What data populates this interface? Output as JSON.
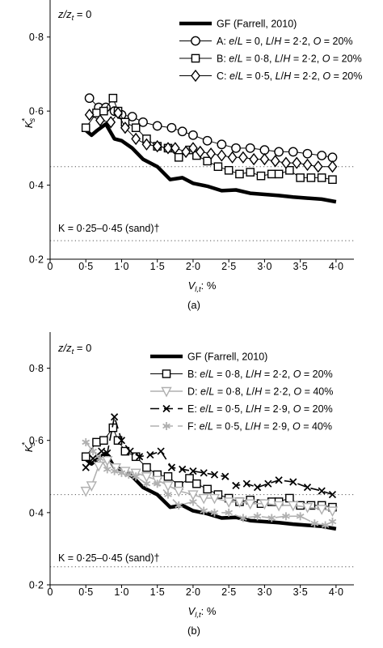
{
  "chart_data": [
    {
      "type": "line",
      "panel_label": "(a)",
      "xlabel_main": "V",
      "xlabel_sub": "l,t",
      "xlabel_unit": ": %",
      "ylabel_main": "K",
      "ylabel_sup": "*",
      "ylabel_sub": "s",
      "xlim": [
        0,
        4.25
      ],
      "ylim": [
        0.2,
        0.9
      ],
      "xticks": [
        {
          "v": 0,
          "label": "0"
        },
        {
          "v": 0.5,
          "label": "0·5"
        },
        {
          "v": 1.0,
          "label": "1·0"
        },
        {
          "v": 1.5,
          "label": "1·5"
        },
        {
          "v": 2.0,
          "label": "2·0"
        },
        {
          "v": 2.5,
          "label": "2·5"
        },
        {
          "v": 3.0,
          "label": "3·0"
        },
        {
          "v": 3.5,
          "label": "3·5"
        },
        {
          "v": 4.0,
          "label": "4·0"
        }
      ],
      "yticks": [
        {
          "v": 0.2,
          "label": "0·2"
        },
        {
          "v": 0.4,
          "label": "0·4"
        },
        {
          "v": 0.6,
          "label": "0·6"
        },
        {
          "v": 0.8,
          "label": "0·8"
        }
      ],
      "ratio_label": {
        "main": "z/z",
        "sub": "t",
        "rest": " = 0"
      },
      "reference_lines": [
        0.25,
        0.45
      ],
      "reference_text": "K = 0·25–0·45 (sand)†",
      "series": [
        {
          "name": "GF (Farrell, 2010)",
          "legend_parts": [
            [
              "GF (Farrell, 2010)",
              "n"
            ]
          ],
          "color": "#000000",
          "stroke_width": 4.5,
          "dash": "",
          "marker": "none",
          "x": [
            0.5,
            0.58,
            0.66,
            0.78,
            0.9,
            1.0,
            1.15,
            1.3,
            1.5,
            1.68,
            1.85,
            2.0,
            2.2,
            2.4,
            2.6,
            2.8,
            3.0,
            3.2,
            3.4,
            3.6,
            3.8,
            4.0
          ],
          "y": [
            0.548,
            0.535,
            0.548,
            0.565,
            0.525,
            0.52,
            0.5,
            0.47,
            0.45,
            0.415,
            0.42,
            0.405,
            0.397,
            0.385,
            0.387,
            0.378,
            0.375,
            0.372,
            0.368,
            0.365,
            0.362,
            0.355
          ]
        },
        {
          "name": "A: e/L = 0, L/H = 2·2, O = 20%",
          "legend_parts": [
            [
              "A: ",
              "n"
            ],
            [
              "e",
              "i"
            ],
            [
              "/",
              "n"
            ],
            [
              "L",
              "i"
            ],
            [
              " = 0, ",
              "n"
            ],
            [
              "L",
              "i"
            ],
            [
              "/",
              "n"
            ],
            [
              "H",
              "i"
            ],
            [
              " = 2·2, ",
              "n"
            ],
            [
              "O",
              "i"
            ],
            [
              " = 20%",
              "n"
            ]
          ],
          "color": "#000000",
          "stroke_width": 1,
          "dash": "",
          "marker": "circle",
          "x": [
            0.55,
            0.68,
            0.78,
            0.9,
            1.0,
            1.15,
            1.3,
            1.5,
            1.7,
            1.85,
            2.0,
            2.2,
            2.4,
            2.6,
            2.8,
            3.0,
            3.2,
            3.4,
            3.6,
            3.8,
            3.95
          ],
          "y": [
            0.635,
            0.61,
            0.61,
            0.6,
            0.59,
            0.585,
            0.57,
            0.56,
            0.555,
            0.545,
            0.535,
            0.52,
            0.51,
            0.5,
            0.5,
            0.495,
            0.49,
            0.49,
            0.485,
            0.48,
            0.475
          ]
        },
        {
          "name": "B: e/L = 0·8, L/H = 2·2, O = 20%",
          "legend_parts": [
            [
              "B: ",
              "n"
            ],
            [
              "e",
              "i"
            ],
            [
              "/",
              "n"
            ],
            [
              "L",
              "i"
            ],
            [
              " = 0·8, ",
              "n"
            ],
            [
              "L",
              "i"
            ],
            [
              "/",
              "n"
            ],
            [
              "H",
              "i"
            ],
            [
              " = 2·2, ",
              "n"
            ],
            [
              "O",
              "i"
            ],
            [
              " = 20%",
              "n"
            ]
          ],
          "color": "#000000",
          "stroke_width": 1,
          "dash": "",
          "marker": "square",
          "x": [
            0.5,
            0.65,
            0.75,
            0.88,
            0.95,
            1.05,
            1.2,
            1.35,
            1.5,
            1.65,
            1.8,
            1.95,
            2.05,
            2.2,
            2.35,
            2.5,
            2.65,
            2.8,
            2.95,
            3.1,
            3.2,
            3.35,
            3.5,
            3.65,
            3.8,
            3.95
          ],
          "y": [
            0.555,
            0.595,
            0.6,
            0.635,
            0.6,
            0.57,
            0.555,
            0.525,
            0.505,
            0.5,
            0.475,
            0.495,
            0.48,
            0.465,
            0.45,
            0.44,
            0.43,
            0.435,
            0.425,
            0.43,
            0.43,
            0.44,
            0.42,
            0.42,
            0.42,
            0.415
          ]
        },
        {
          "name": "C: e/L = 0·5, L/H = 2·2, O = 20%",
          "legend_parts": [
            [
              "C: ",
              "n"
            ],
            [
              "e",
              "i"
            ],
            [
              "/",
              "n"
            ],
            [
              "L",
              "i"
            ],
            [
              " = 0·5, ",
              "n"
            ],
            [
              "L",
              "i"
            ],
            [
              "/",
              "n"
            ],
            [
              "H",
              "i"
            ],
            [
              " = 2·2, ",
              "n"
            ],
            [
              "O",
              "i"
            ],
            [
              " = 20%",
              "n"
            ]
          ],
          "color": "#000000",
          "stroke_width": 1,
          "dash": "",
          "marker": "diamond",
          "x": [
            0.55,
            0.7,
            0.85,
            0.95,
            1.05,
            1.2,
            1.35,
            1.5,
            1.65,
            1.75,
            1.9,
            2.0,
            2.1,
            2.25,
            2.4,
            2.55,
            2.7,
            2.85,
            3.0,
            3.15,
            3.3,
            3.45,
            3.6,
            3.75,
            3.95
          ],
          "y": [
            0.59,
            0.575,
            0.57,
            0.595,
            0.555,
            0.525,
            0.51,
            0.505,
            0.5,
            0.5,
            0.49,
            0.5,
            0.49,
            0.485,
            0.48,
            0.475,
            0.475,
            0.47,
            0.47,
            0.465,
            0.46,
            0.46,
            0.455,
            0.45,
            0.45
          ]
        }
      ]
    },
    {
      "type": "line",
      "panel_label": "(b)",
      "xlabel_main": "V",
      "xlabel_sub": "l,t",
      "xlabel_unit": ": %",
      "ylabel_main": "K",
      "ylabel_sup": "*",
      "ylabel_sub": "s",
      "xlim": [
        0,
        4.25
      ],
      "ylim": [
        0.2,
        0.9
      ],
      "xticks": [
        {
          "v": 0,
          "label": "0"
        },
        {
          "v": 0.5,
          "label": "0·5"
        },
        {
          "v": 1.0,
          "label": "1·0"
        },
        {
          "v": 1.5,
          "label": "1·5"
        },
        {
          "v": 2.0,
          "label": "2·0"
        },
        {
          "v": 2.5,
          "label": "2·5"
        },
        {
          "v": 3.0,
          "label": "3·0"
        },
        {
          "v": 3.5,
          "label": "3·5"
        },
        {
          "v": 4.0,
          "label": "4·0"
        }
      ],
      "yticks": [
        {
          "v": 0.2,
          "label": "0·2"
        },
        {
          "v": 0.4,
          "label": "0·4"
        },
        {
          "v": 0.6,
          "label": "0·6"
        },
        {
          "v": 0.8,
          "label": "0·8"
        }
      ],
      "ratio_label": {
        "main": "z/z",
        "sub": "t",
        "rest": " = 0"
      },
      "reference_lines": [
        0.25,
        0.45
      ],
      "reference_text": "K = 0·25–0·45 (sand)†",
      "series": [
        {
          "name": "GF (Farrell, 2010)",
          "legend_parts": [
            [
              "GF (Farrell, 2010)",
              "n"
            ]
          ],
          "color": "#000000",
          "stroke_width": 4.5,
          "dash": "",
          "marker": "none",
          "x": [
            0.5,
            0.58,
            0.66,
            0.78,
            0.9,
            1.0,
            1.15,
            1.3,
            1.5,
            1.68,
            1.85,
            2.0,
            2.2,
            2.4,
            2.6,
            2.8,
            3.0,
            3.2,
            3.4,
            3.6,
            3.8,
            4.0
          ],
          "y": [
            0.548,
            0.535,
            0.548,
            0.565,
            0.525,
            0.52,
            0.5,
            0.47,
            0.45,
            0.415,
            0.42,
            0.405,
            0.397,
            0.385,
            0.387,
            0.378,
            0.375,
            0.372,
            0.368,
            0.365,
            0.362,
            0.355
          ]
        },
        {
          "name": "B: e/L = 0·8, L/H = 2·2, O = 20%",
          "legend_parts": [
            [
              "B: ",
              "n"
            ],
            [
              "e",
              "i"
            ],
            [
              "/",
              "n"
            ],
            [
              "L",
              "i"
            ],
            [
              " = 0·8, ",
              "n"
            ],
            [
              "L",
              "i"
            ],
            [
              "/",
              "n"
            ],
            [
              "H",
              "i"
            ],
            [
              " = 2·2, ",
              "n"
            ],
            [
              "O",
              "i"
            ],
            [
              " = 20%",
              "n"
            ]
          ],
          "color": "#000000",
          "stroke_width": 1,
          "dash": "",
          "marker": "square",
          "x": [
            0.5,
            0.65,
            0.75,
            0.88,
            0.95,
            1.05,
            1.2,
            1.35,
            1.5,
            1.65,
            1.8,
            1.95,
            2.05,
            2.2,
            2.35,
            2.5,
            2.65,
            2.8,
            2.95,
            3.1,
            3.2,
            3.35,
            3.5,
            3.65,
            3.8,
            3.95
          ],
          "y": [
            0.555,
            0.595,
            0.6,
            0.635,
            0.6,
            0.57,
            0.555,
            0.525,
            0.505,
            0.5,
            0.475,
            0.495,
            0.48,
            0.465,
            0.45,
            0.44,
            0.43,
            0.435,
            0.425,
            0.43,
            0.43,
            0.44,
            0.42,
            0.42,
            0.42,
            0.415
          ]
        },
        {
          "name": "D: e/L = 0·8, L/H = 2·2, O = 40%",
          "legend_parts": [
            [
              "D: ",
              "n"
            ],
            [
              "e",
              "i"
            ],
            [
              "/",
              "n"
            ],
            [
              "L",
              "i"
            ],
            [
              " = 0·8, ",
              "n"
            ],
            [
              "L",
              "i"
            ],
            [
              "/",
              "n"
            ],
            [
              "H",
              "i"
            ],
            [
              " = 2·2, ",
              "n"
            ],
            [
              "O",
              "i"
            ],
            [
              " = 40%",
              "n"
            ]
          ],
          "color": "#b0b0b0",
          "stroke_width": 1.6,
          "dash": "",
          "marker": "triangle-down",
          "x": [
            0.5,
            0.58,
            0.68,
            0.8,
            0.92,
            1.05,
            1.2,
            1.35,
            1.5,
            1.65,
            1.8,
            2.0,
            2.15,
            2.3,
            2.5,
            2.65,
            2.8,
            3.0,
            3.2,
            3.4,
            3.6,
            3.8,
            3.95
          ],
          "y": [
            0.46,
            0.475,
            0.53,
            0.545,
            0.525,
            0.515,
            0.51,
            0.5,
            0.49,
            0.475,
            0.46,
            0.45,
            0.44,
            0.44,
            0.43,
            0.43,
            0.425,
            0.425,
            0.42,
            0.42,
            0.415,
            0.41,
            0.405
          ]
        },
        {
          "name": "E: e/L = 0·5, L/H = 2·9, O = 20%",
          "legend_parts": [
            [
              "E: ",
              "n"
            ],
            [
              "e",
              "i"
            ],
            [
              "/",
              "n"
            ],
            [
              "L",
              "i"
            ],
            [
              " = 0·5, ",
              "n"
            ],
            [
              "L",
              "i"
            ],
            [
              "/",
              "n"
            ],
            [
              "H",
              "i"
            ],
            [
              " = 2·9, ",
              "n"
            ],
            [
              "O",
              "i"
            ],
            [
              " = 20%",
              "n"
            ]
          ],
          "color": "#000000",
          "stroke_width": 1.6,
          "dash": "11 6",
          "marker": "x",
          "x": [
            0.5,
            0.6,
            0.72,
            0.8,
            0.9,
            1.0,
            1.12,
            1.25,
            1.4,
            1.55,
            1.7,
            1.85,
            2.0,
            2.15,
            2.3,
            2.45,
            2.6,
            2.75,
            2.9,
            3.05,
            3.2,
            3.4,
            3.6,
            3.8,
            3.95
          ],
          "y": [
            0.525,
            0.55,
            0.57,
            0.565,
            0.665,
            0.6,
            0.57,
            0.555,
            0.56,
            0.57,
            0.525,
            0.52,
            0.515,
            0.51,
            0.505,
            0.5,
            0.475,
            0.48,
            0.47,
            0.48,
            0.49,
            0.485,
            0.47,
            0.46,
            0.45
          ]
        },
        {
          "name": "F: e/L = 0·5, L/H = 2·9, O = 40%",
          "legend_parts": [
            [
              "F: ",
              "n"
            ],
            [
              "e",
              "i"
            ],
            [
              "/",
              "n"
            ],
            [
              "L",
              "i"
            ],
            [
              " = 0·5, ",
              "n"
            ],
            [
              "L",
              "i"
            ],
            [
              "/",
              "n"
            ],
            [
              "H",
              "i"
            ],
            [
              " = 2·9, ",
              "n"
            ],
            [
              "O",
              "i"
            ],
            [
              " = 40%",
              "n"
            ]
          ],
          "color": "#b0b0b0",
          "stroke_width": 1.6,
          "dash": "11 6",
          "marker": "asterisk",
          "x": [
            0.5,
            0.6,
            0.7,
            0.8,
            0.9,
            1.0,
            1.1,
            1.2,
            1.35,
            1.5,
            1.65,
            1.8,
            2.0,
            2.15,
            2.3,
            2.5,
            2.7,
            2.9,
            3.1,
            3.3,
            3.5,
            3.7,
            3.85,
            3.95
          ],
          "y": [
            0.595,
            0.57,
            0.55,
            0.52,
            0.515,
            0.51,
            0.505,
            0.5,
            0.48,
            0.48,
            0.45,
            0.42,
            0.43,
            0.405,
            0.4,
            0.4,
            0.385,
            0.39,
            0.385,
            0.39,
            0.39,
            0.37,
            0.365,
            0.375
          ]
        }
      ]
    }
  ]
}
